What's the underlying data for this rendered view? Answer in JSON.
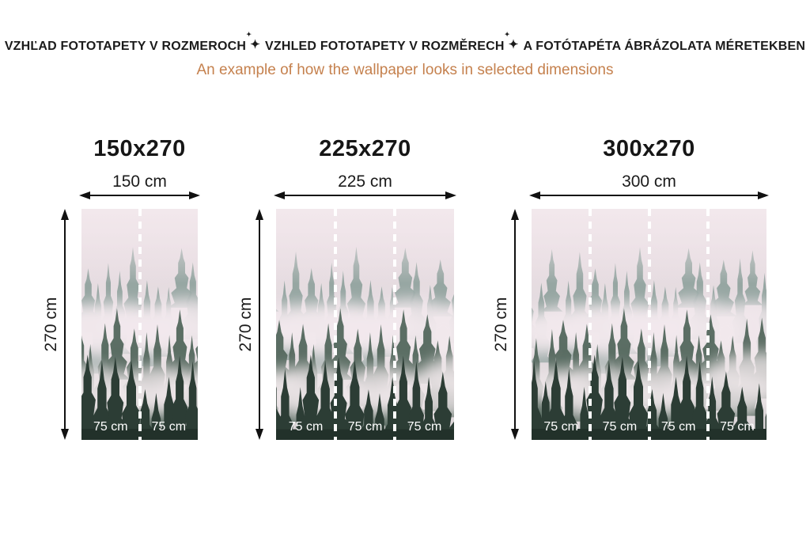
{
  "header": {
    "line1_parts": [
      "VZHĽAD FOTOTAPETY V ROZMEROCH",
      "VZHLED FOTOTAPETY V ROZMĚRECH",
      "A FOTÓTAPÉTA ÁBRÁZOLATA MÉRETEKBEN"
    ],
    "separator_glyph": "✦",
    "separator_glyph_small": "✦",
    "subtitle": "An example of how the wallpaper looks in selected dimensions"
  },
  "colors": {
    "heading_text": "#1b1b1b",
    "subtitle_text": "#c5814e",
    "arrow": "#111111",
    "panel_divider": "#ffffff",
    "segment_label_text": "#ffffff"
  },
  "panels": [
    {
      "title": "150x270",
      "width_label": "150 cm",
      "height_label": "270 cm",
      "segments": [
        "75 cm",
        "75 cm"
      ],
      "image": "foggy-forest-wallpaper"
    },
    {
      "title": "225x270",
      "width_label": "225 cm",
      "height_label": "270 cm",
      "segments": [
        "75 cm",
        "75 cm",
        "75 cm"
      ],
      "image": "foggy-forest-wallpaper"
    },
    {
      "title": "300x270",
      "width_label": "300 cm",
      "height_label": "270 cm",
      "segments": [
        "75 cm",
        "75 cm",
        "75 cm",
        "75 cm"
      ],
      "image": "foggy-forest-wallpaper"
    }
  ]
}
